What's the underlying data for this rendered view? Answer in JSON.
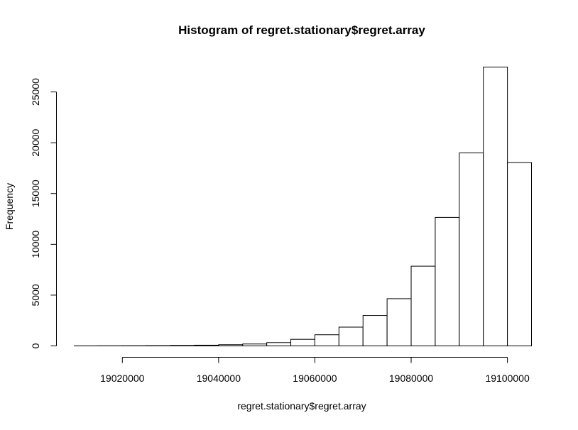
{
  "chart_data": {
    "type": "bar",
    "subtype": "histogram",
    "title": "Histogram of regret.stationary$regret.array",
    "xlabel": "regret.stationary$regret.array",
    "ylabel": "Frequency",
    "bin_width": 5000,
    "bins": [
      {
        "start": 19010000,
        "end": 19015000,
        "count": 5
      },
      {
        "start": 19015000,
        "end": 19020000,
        "count": 10
      },
      {
        "start": 19020000,
        "end": 19025000,
        "count": 15
      },
      {
        "start": 19025000,
        "end": 19030000,
        "count": 25
      },
      {
        "start": 19030000,
        "end": 19035000,
        "count": 45
      },
      {
        "start": 19035000,
        "end": 19040000,
        "count": 75
      },
      {
        "start": 19040000,
        "end": 19045000,
        "count": 120
      },
      {
        "start": 19045000,
        "end": 19050000,
        "count": 190
      },
      {
        "start": 19050000,
        "end": 19055000,
        "count": 330
      },
      {
        "start": 19055000,
        "end": 19060000,
        "count": 650
      },
      {
        "start": 19060000,
        "end": 19065000,
        "count": 1100
      },
      {
        "start": 19065000,
        "end": 19070000,
        "count": 1850
      },
      {
        "start": 19070000,
        "end": 19075000,
        "count": 3000
      },
      {
        "start": 19075000,
        "end": 19080000,
        "count": 4650
      },
      {
        "start": 19080000,
        "end": 19085000,
        "count": 7850
      },
      {
        "start": 19085000,
        "end": 19090000,
        "count": 12650
      },
      {
        "start": 19090000,
        "end": 19095000,
        "count": 19000
      },
      {
        "start": 19095000,
        "end": 19100000,
        "count": 27450
      },
      {
        "start": 19100000,
        "end": 19105000,
        "count": 18050
      }
    ],
    "xlim": [
      19010000,
      19105000
    ],
    "ylim": [
      0,
      27450
    ],
    "x_ticks": [
      19020000,
      19040000,
      19060000,
      19080000,
      19100000
    ],
    "x_tick_labels": [
      "19020000",
      "19040000",
      "19060000",
      "19080000",
      "19100000"
    ],
    "y_ticks": [
      0,
      5000,
      10000,
      15000,
      20000,
      25000
    ],
    "y_tick_labels": [
      "0",
      "5000",
      "10000",
      "15000",
      "20000",
      "25000"
    ],
    "grid": false,
    "legend": "none",
    "colors": {
      "bar_fill": "#ffffff",
      "bar_stroke": "#000000",
      "axis": "#000000",
      "background": "#ffffff"
    }
  }
}
